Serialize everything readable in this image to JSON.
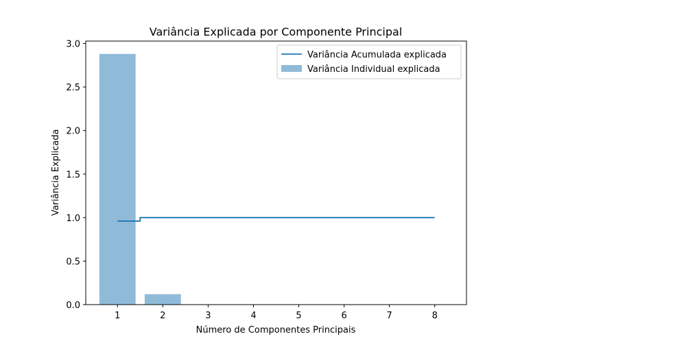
{
  "chart_data": {
    "type": "bar",
    "title": "Variância Explicada por Componente Principal",
    "xlabel": "Número de Componentes Principais",
    "ylabel": "Variância Explicada",
    "categories": [
      1,
      2,
      3,
      4,
      5,
      6,
      7,
      8
    ],
    "xlim": [
      0.3,
      8.7
    ],
    "ylim": [
      0,
      3.0
    ],
    "yticks": [
      0.0,
      0.5,
      1.0,
      1.5,
      2.0,
      2.5,
      3.0
    ],
    "ytick_labels": [
      "0.0",
      "0.5",
      "1.0",
      "1.5",
      "2.0",
      "2.5",
      "3.0"
    ],
    "xtick_labels": [
      "1",
      "2",
      "3",
      "4",
      "5",
      "6",
      "7",
      "8"
    ],
    "grid": false,
    "legend_position": "top-right",
    "series": [
      {
        "name": "Variância Individual explicada",
        "type": "bar",
        "color": "#8fbbd9",
        "values": [
          2.88,
          0.12,
          0.0,
          0.0,
          0.0,
          0.0,
          0.0,
          0.0
        ]
      },
      {
        "name": "Variância Acumulada explicada",
        "type": "step",
        "color": "#1f77b4",
        "values": [
          0.96,
          1.0,
          1.0,
          1.0,
          1.0,
          1.0,
          1.0,
          1.0
        ]
      }
    ]
  }
}
